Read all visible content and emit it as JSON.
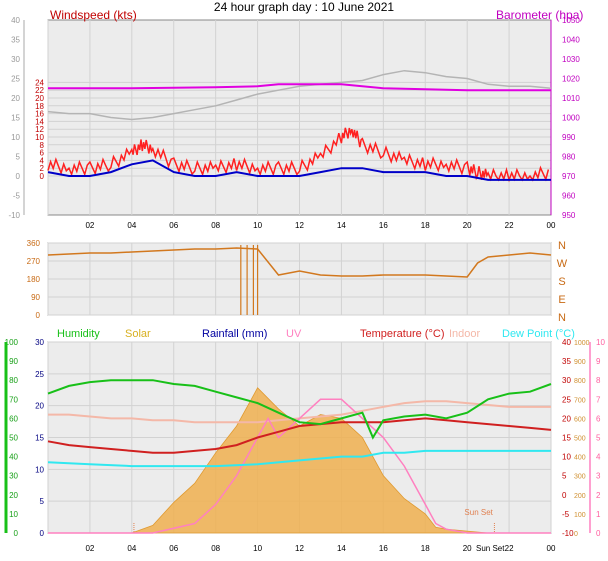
{
  "title": "24 hour graph day : 10 June 2021",
  "colors": {
    "windspeed": "#ff0000",
    "gust": "#ff2020",
    "avgwind": "#0000c8",
    "barometer": "#e000e0",
    "baro_grey": "#b4b4b4",
    "wind_dir": "#d2781e",
    "humidity": "#18c018",
    "solar": "#f0b050",
    "rainfall": "#0000a0",
    "uv": "#ff80c0",
    "temperature": "#d02020",
    "indoor": "#f4b8a8",
    "dewpoint": "#30e8f0"
  },
  "chart_data": [
    {
      "type": "line",
      "id": "wind-baro",
      "title": "24 hour graph day : 10 June 2021",
      "ylabel_left": "Windspeed (kts)",
      "ylabel_right": "Barometer (hpa)",
      "x_ticks": [
        "02",
        "04",
        "06",
        "08",
        "10",
        "12",
        "14",
        "16",
        "18",
        "20",
        "22",
        "00"
      ],
      "y_left_ticks": [
        "-10",
        "-5",
        "0",
        "5",
        "10",
        "15",
        "20",
        "25",
        "30",
        "35",
        "40"
      ],
      "y_left_inner_ticks": [
        "0",
        "2",
        "4",
        "6",
        "8",
        "10",
        "12",
        "14",
        "16",
        "18",
        "20",
        "22",
        "24"
      ],
      "y_right_ticks": [
        "980",
        "990",
        "1000",
        "1010",
        "1020",
        "1030",
        "1040",
        "1050",
        "960",
        "970"
      ],
      "y_right_ticks_ordered": [
        "950",
        "960",
        "970",
        "980",
        "990",
        "1000",
        "1010",
        "1020",
        "1030",
        "1040",
        "1050"
      ],
      "ylim_left": [
        -10,
        40
      ],
      "ylim_right": [
        950,
        1050
      ],
      "series": [
        {
          "key": "gust",
          "x": [
            0,
            1,
            2,
            3,
            4,
            4.5,
            5,
            6,
            7,
            8,
            9,
            10,
            11,
            12,
            13,
            14,
            14.5,
            15,
            16,
            17,
            18,
            19,
            20,
            20.5,
            21,
            22,
            23,
            24
          ],
          "values": [
            3,
            2,
            2,
            3,
            6,
            8,
            7,
            3,
            2,
            2,
            3,
            2,
            2,
            2,
            5,
            10,
            12,
            8,
            6,
            4,
            3,
            3,
            2,
            1,
            0,
            0,
            0,
            1
          ]
        },
        {
          "key": "avgwind",
          "x": [
            0,
            1,
            2,
            3,
            4,
            5,
            6,
            7,
            8,
            9,
            10,
            11,
            12,
            13,
            14,
            15,
            16,
            17,
            18,
            19,
            20,
            21,
            22,
            23,
            24
          ],
          "values": [
            1,
            0,
            0,
            1,
            3,
            4,
            1,
            0,
            0,
            1,
            0,
            0,
            0,
            1,
            2,
            2,
            1,
            1,
            1,
            0,
            0,
            -1,
            -1,
            -1,
            -1
          ]
        },
        {
          "key": "barometer",
          "x": [
            0,
            4,
            8,
            10,
            11,
            14,
            16,
            20,
            24
          ],
          "values": [
            1015,
            1015,
            1015.5,
            1016,
            1017,
            1017,
            1015,
            1014,
            1014
          ]
        },
        {
          "key": "baro_grey",
          "x": [
            0,
            1,
            2,
            3,
            4,
            5,
            6,
            7,
            8,
            9,
            10,
            11,
            12,
            13,
            14,
            15,
            16,
            17,
            18,
            19,
            20,
            21,
            22,
            23,
            24
          ],
          "values": [
            1003,
            1002,
            1002,
            1000,
            999,
            1000,
            1002,
            1004,
            1006,
            1009,
            1012,
            1014,
            1016,
            1017,
            1018,
            1019,
            1022,
            1024,
            1023,
            1021,
            1020,
            1017,
            1016,
            1016,
            1015
          ]
        }
      ]
    },
    {
      "type": "line",
      "id": "wind-direction",
      "y_ticks": [
        "0",
        "90",
        "180",
        "270",
        "360"
      ],
      "y_right_labels": [
        "N",
        "W",
        "S",
        "E",
        "N"
      ],
      "ylim": [
        0,
        360
      ],
      "series": [
        {
          "key": "wind_dir",
          "x": [
            0,
            1,
            2,
            3,
            4,
            5,
            6,
            7,
            8,
            9,
            10,
            11,
            12,
            13,
            14,
            15,
            16,
            17,
            18,
            19,
            20,
            20.5,
            21,
            22,
            23,
            24
          ],
          "values": [
            300,
            305,
            310,
            310,
            315,
            320,
            325,
            330,
            330,
            335,
            330,
            200,
            220,
            200,
            195,
            195,
            200,
            200,
            200,
            195,
            190,
            260,
            290,
            300,
            310,
            300
          ]
        }
      ]
    },
    {
      "type": "line",
      "id": "multi",
      "legend": [
        "Humidity",
        "Solar",
        "Rainfall (mm)",
        "UV",
        "Temperature (°C)",
        "Indoor",
        "Dew Point (°C)"
      ],
      "annotation": "Sun Set",
      "x_ticks": [
        "02",
        "04",
        "06",
        "08",
        "10",
        "12",
        "14",
        "16",
        "18",
        "20",
        "Sun Set",
        "22",
        "00"
      ],
      "y_humidity_ticks": [
        "0",
        "10",
        "20",
        "30",
        "40",
        "50",
        "60",
        "70",
        "80",
        "90",
        "100"
      ],
      "y_rain_ticks": [
        "0",
        "5",
        "10",
        "15",
        "20",
        "25",
        "30"
      ],
      "y_temp_ticks": [
        "-10",
        "-5",
        "0",
        "5",
        "10",
        "15",
        "20",
        "25",
        "30",
        "35",
        "40"
      ],
      "y_uv_ticks": [
        "0",
        "1",
        "2",
        "3",
        "4",
        "5",
        "6",
        "7",
        "8",
        "9",
        "10"
      ],
      "y_solar_ticks": [
        "0",
        "100",
        "200",
        "300",
        "400",
        "500",
        "600",
        "700",
        "800",
        "900",
        "1000"
      ],
      "series": [
        {
          "key": "humidity",
          "x": [
            0,
            1,
            2,
            3,
            4,
            5,
            6,
            7,
            8,
            9,
            10,
            11,
            12,
            13,
            14,
            15,
            15.5,
            16,
            17,
            18,
            19,
            20,
            21,
            22,
            23,
            24
          ],
          "values": [
            73,
            77,
            79,
            80,
            80,
            80,
            78,
            77,
            74,
            71,
            68,
            63,
            58,
            57,
            60,
            63,
            50,
            59,
            61,
            62,
            60,
            63,
            70,
            73,
            74,
            78
          ]
        },
        {
          "key": "temperature",
          "x": [
            0,
            1,
            2,
            3,
            4,
            5,
            6,
            7,
            8,
            9,
            10,
            11,
            12,
            13,
            14,
            15,
            16,
            17,
            18,
            19,
            20,
            21,
            22,
            23,
            24
          ],
          "values": [
            14,
            13,
            12.5,
            12,
            11.5,
            11,
            11,
            11.5,
            12,
            13,
            15,
            16.5,
            18,
            18.5,
            19,
            19,
            19,
            19.5,
            20,
            19.5,
            19,
            18.5,
            18,
            17.5,
            17
          ]
        },
        {
          "key": "indoor",
          "x": [
            0,
            1,
            2,
            3,
            4,
            5,
            6,
            7,
            8,
            9,
            10,
            11,
            12,
            13,
            14,
            15,
            16,
            17,
            18,
            19,
            20,
            21,
            22,
            23,
            24
          ],
          "values": [
            21,
            21,
            20.5,
            20,
            20,
            19.5,
            19.5,
            19,
            19,
            19,
            19,
            19.5,
            20,
            20.5,
            21,
            22,
            23,
            24,
            24.5,
            24.5,
            24,
            23.5,
            23,
            23,
            23
          ]
        },
        {
          "key": "dewpoint",
          "x": [
            0,
            2,
            4,
            6,
            8,
            10,
            12,
            13,
            14,
            15,
            16,
            17,
            18,
            19,
            20,
            21,
            22,
            23,
            24
          ],
          "values": [
            8.5,
            8,
            7.5,
            7.5,
            7.5,
            8,
            9,
            9.5,
            10,
            10,
            11,
            11,
            11.5,
            11.5,
            11.5,
            11.5,
            11.5,
            11.5,
            11.5
          ]
        },
        {
          "key": "solar",
          "x": [
            0,
            4,
            5,
            6,
            7,
            8,
            9,
            10,
            11,
            12,
            13,
            14,
            15,
            16,
            17,
            18,
            18.5,
            19,
            20,
            21,
            24
          ],
          "values": [
            0,
            0,
            40,
            160,
            260,
            420,
            560,
            760,
            650,
            560,
            620,
            600,
            500,
            300,
            180,
            100,
            30,
            20,
            10,
            0,
            0
          ]
        },
        {
          "key": "uv",
          "x": [
            0,
            5,
            7,
            8,
            9,
            10,
            10.5,
            11,
            12,
            13,
            14,
            15,
            16,
            17,
            18,
            18.5,
            19,
            20,
            21,
            24
          ],
          "values": [
            0,
            0,
            0.5,
            1.5,
            3,
            5,
            6,
            5,
            6,
            7,
            7,
            6,
            5,
            3.5,
            1.5,
            0.5,
            0.2,
            0,
            0,
            0
          ]
        }
      ]
    }
  ]
}
